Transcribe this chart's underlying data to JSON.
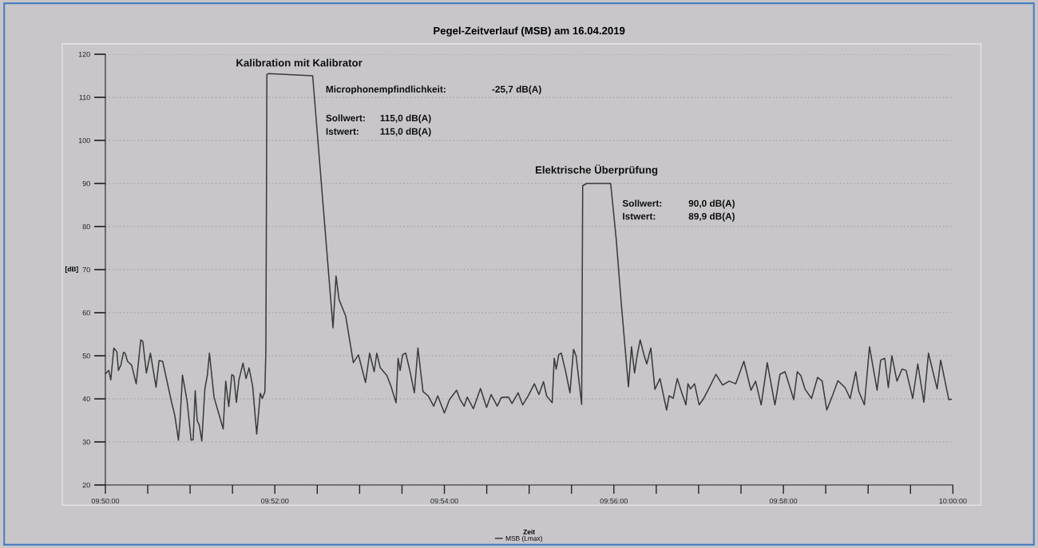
{
  "chart_data": {
    "type": "line",
    "title": "Pegel-Zeitverlauf (MSB) am 16.04.2019",
    "xlabel": "Zeit",
    "ylabel": "[dB]",
    "series": [
      {
        "name": "MSB (Lmax)",
        "color": "#3a3a3a",
        "x": [
          9.83334,
          9.834,
          9.8344,
          9.835,
          9.8356,
          9.8359,
          9.8364,
          9.8369,
          9.8372,
          9.8377,
          9.8385,
          9.8394,
          9.8403,
          9.8407,
          9.8414,
          9.8422,
          9.8433,
          9.8439,
          9.8446,
          9.8463,
          9.847,
          9.8477,
          9.848,
          9.8485,
          9.8494,
          9.8502,
          9.8506,
          9.851,
          9.8514,
          9.8518,
          9.8523,
          9.8529,
          9.8534,
          9.8538,
          9.8547,
          9.8556,
          9.8565,
          9.857,
          9.8576,
          9.8582,
          9.8586,
          9.8591,
          9.8596,
          9.8604,
          9.861,
          9.8616,
          9.8623,
          9.8631,
          9.8638,
          9.8642,
          9.8647,
          9.8649,
          9.8651,
          9.8654,
          9.8741,
          9.8781,
          9.8787,
          9.8793,
          9.8806,
          9.8821,
          9.8831,
          9.8845,
          9.8853,
          9.8862,
          9.8867,
          9.8874,
          9.8887,
          9.8895,
          9.8905,
          9.8909,
          9.8913,
          9.8918,
          9.8924,
          9.8932,
          9.8941,
          9.8948,
          9.8958,
          9.8968,
          9.8979,
          9.8987,
          9.9,
          9.901,
          9.9024,
          9.9031,
          9.9039,
          9.9045,
          9.9057,
          9.9071,
          9.9083,
          9.9092,
          9.9104,
          9.9112,
          9.9126,
          9.9133,
          9.9145,
          9.9154,
          9.9165,
          9.9177,
          9.9186,
          9.9195,
          9.9201,
          9.9212,
          9.9216,
          9.922,
          9.9225,
          9.923,
          9.9238,
          9.9247,
          9.9254,
          9.9259,
          9.927,
          9.9272,
          9.928,
          9.9327,
          9.9338,
          9.9348,
          9.9362,
          9.9368,
          9.9374,
          9.9379,
          9.9385,
          9.9393,
          9.9398,
          9.9406,
          9.9414,
          9.9424,
          9.9437,
          9.9442,
          9.945,
          9.9458,
          9.9466,
          9.9475,
          9.9479,
          9.9484,
          9.9492,
          9.9501,
          9.951,
          9.9521,
          9.9534,
          9.9547,
          9.956,
          9.9573,
          9.9589,
          9.9603,
          9.9612,
          9.9623,
          9.9635,
          9.965,
          9.966,
          9.967,
          9.9687,
          9.9694,
          9.9701,
          9.9709,
          9.9722,
          9.9734,
          9.9743,
          9.9752,
          9.9763,
          9.9774,
          9.9788,
          9.9798,
          9.9809,
          9.9815,
          9.9826,
          9.9836,
          9.9851,
          9.9858,
          9.9866,
          9.9873,
          9.988,
          9.989,
          9.99,
          9.9908,
          9.9921,
          9.9931,
          9.9943,
          9.9952,
          9.9969,
          9.9976,
          9.9992,
          9.9997
        ],
        "values": [
          45.8,
          46.6,
          44.4,
          51.8,
          50.9,
          46.6,
          47.9,
          50.8,
          50.6,
          48.7,
          47.8,
          43.5,
          53.7,
          53.3,
          46.0,
          50.6,
          42.7,
          48.9,
          48.7,
          39.5,
          36.1,
          30.4,
          34.6,
          45.5,
          39.5,
          30.4,
          30.5,
          41.9,
          34.9,
          33.9,
          30.2,
          42.3,
          45.6,
          50.6,
          40.4,
          36.7,
          33.0,
          44.1,
          38.2,
          45.6,
          45.3,
          39.2,
          44.4,
          48.3,
          44.7,
          47.2,
          42.9,
          31.8,
          41.3,
          40.1,
          41.6,
          51.5,
          115.3,
          115.5,
          115.0,
          56.5,
          68.5,
          63.0,
          59.2,
          48.4,
          50.2,
          43.8,
          50.6,
          46.3,
          50.6,
          47.2,
          45.4,
          42.9,
          39.1,
          49.4,
          46.6,
          50.3,
          50.6,
          46.6,
          41.4,
          51.8,
          41.7,
          40.7,
          38.3,
          40.7,
          36.7,
          39.8,
          42.0,
          39.8,
          38.3,
          40.4,
          37.7,
          42.4,
          38.0,
          41.0,
          38.3,
          40.3,
          40.4,
          38.9,
          41.4,
          38.6,
          40.7,
          43.5,
          41.0,
          44.0,
          40.7,
          39.1,
          49.4,
          46.9,
          50.3,
          50.6,
          46.6,
          41.4,
          51.5,
          50.0,
          38.7,
          89.5,
          90.0,
          90.0,
          77.0,
          62.0,
          42.8,
          52.1,
          46.0,
          50.0,
          53.7,
          50.0,
          48.1,
          51.8,
          42.2,
          44.7,
          37.4,
          40.7,
          40.1,
          44.7,
          41.7,
          38.6,
          43.5,
          42.3,
          43.5,
          38.6,
          40.1,
          42.6,
          45.7,
          43.2,
          44.1,
          43.5,
          48.7,
          42.0,
          44.1,
          38.6,
          48.4,
          38.6,
          45.7,
          46.3,
          39.8,
          46.3,
          45.4,
          42.3,
          40.1,
          45.0,
          44.1,
          37.4,
          40.7,
          44.2,
          42.6,
          40.1,
          46.3,
          41.7,
          38.6,
          52.1,
          42.0,
          49.0,
          49.4,
          42.6,
          50.0,
          44.1,
          46.9,
          46.6,
          40.1,
          48.1,
          39.2,
          50.6,
          42.3,
          49.0,
          39.8,
          39.9
        ]
      }
    ],
    "xlim": [
      9.833333,
      10.0
    ],
    "xticks": [
      {
        "value": 9.833333,
        "label": "09:50:00"
      },
      {
        "value": 9.841667,
        "label": null
      },
      {
        "value": 9.85,
        "label": null
      },
      {
        "value": 9.858333,
        "label": null
      },
      {
        "value": 9.866667,
        "label": "09:52:00"
      },
      {
        "value": 9.875,
        "label": null
      },
      {
        "value": 9.883333,
        "label": null
      },
      {
        "value": 9.891667,
        "label": null
      },
      {
        "value": 9.9,
        "label": "09:54:00"
      },
      {
        "value": 9.908333,
        "label": null
      },
      {
        "value": 9.916667,
        "label": null
      },
      {
        "value": 9.925,
        "label": null
      },
      {
        "value": 9.933333,
        "label": "09:56:00"
      },
      {
        "value": 9.941667,
        "label": null
      },
      {
        "value": 9.95,
        "label": null
      },
      {
        "value": 9.958333,
        "label": null
      },
      {
        "value": 9.966667,
        "label": "09:58:00"
      },
      {
        "value": 9.975,
        "label": null
      },
      {
        "value": 9.983333,
        "label": null
      },
      {
        "value": 9.991667,
        "label": null
      },
      {
        "value": 10.0,
        "label": "10:00:00"
      }
    ],
    "ylim": [
      20,
      120
    ],
    "yticks": [
      20,
      30,
      40,
      50,
      60,
      70,
      80,
      90,
      100,
      110,
      120
    ],
    "grid": "y",
    "legend": "bottom",
    "marker": "none",
    "line_style": "solid",
    "annotations": [
      "Kalibration mit Kalibrator",
      "Microphonempfindlichkeit:",
      "-25,7 dB(A)",
      "Sollwert:",
      "115,0 dB(A)",
      "Istwert:",
      "115,0 dB(A)",
      "Elektrische Überprüfung",
      "Sollwert:",
      "90,0 dB(A)",
      "Istwert:",
      "89,9 dB(A)"
    ]
  }
}
